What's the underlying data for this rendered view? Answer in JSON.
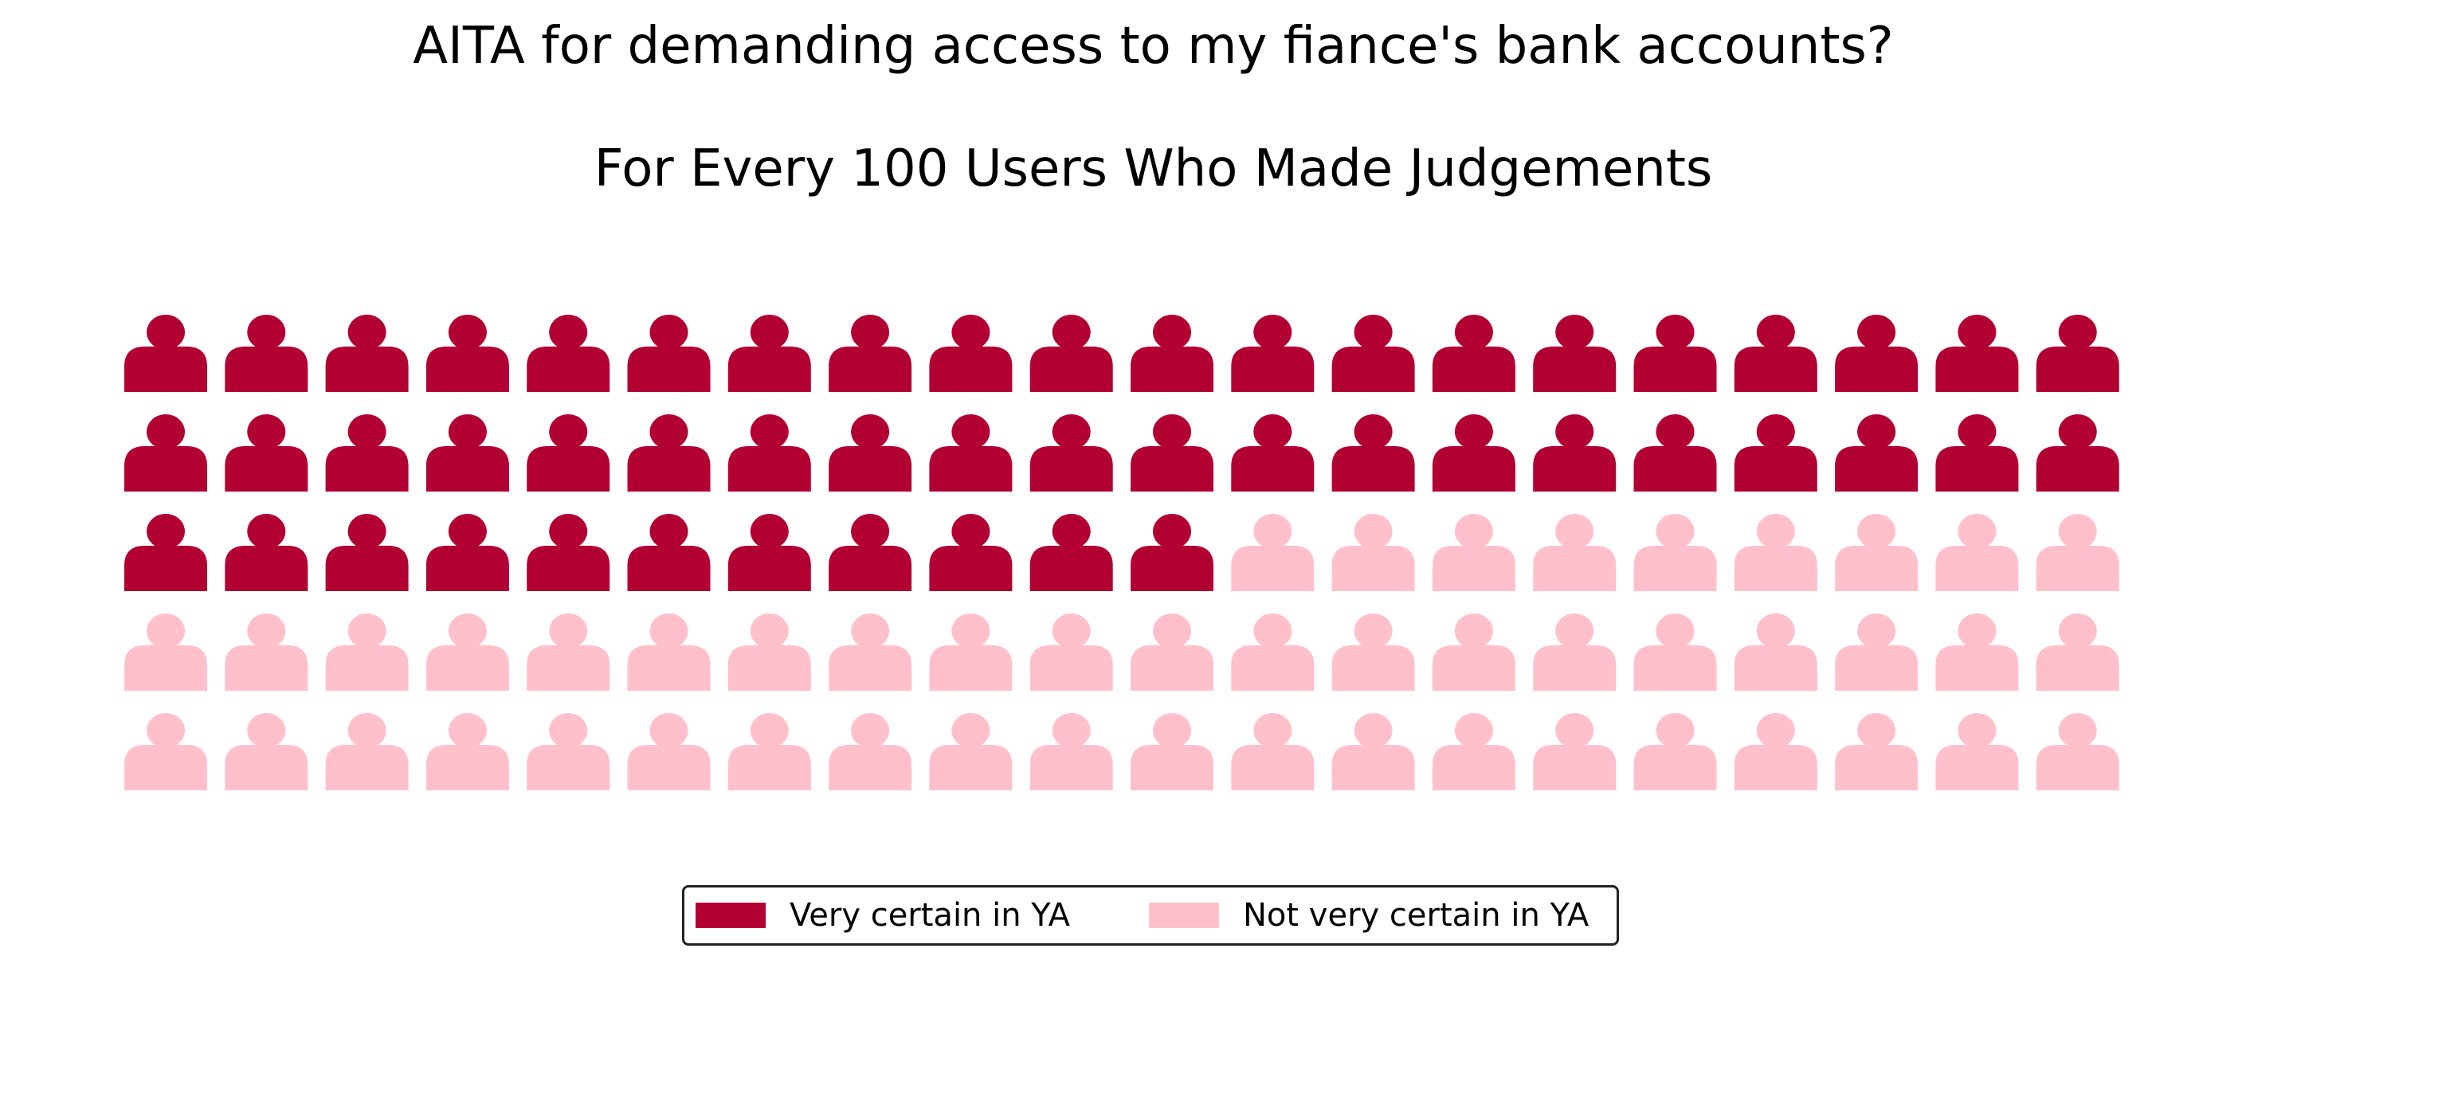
{
  "chart_data": {
    "type": "waffle",
    "title": "AITA for demanding access to my fiance's bank accounts?",
    "subtitle": "For Every 100 Users Who Made Judgements",
    "icon": "person-icon",
    "grid": {
      "rows": 5,
      "columns": 20
    },
    "total": 100,
    "legend_placement": "bottom-center",
    "series": [
      {
        "name": "Very certain in YA",
        "value": 51,
        "color": "#b30033"
      },
      {
        "name": "Not very certain in YA",
        "value": 49,
        "color": "#ffc0cb"
      }
    ]
  }
}
